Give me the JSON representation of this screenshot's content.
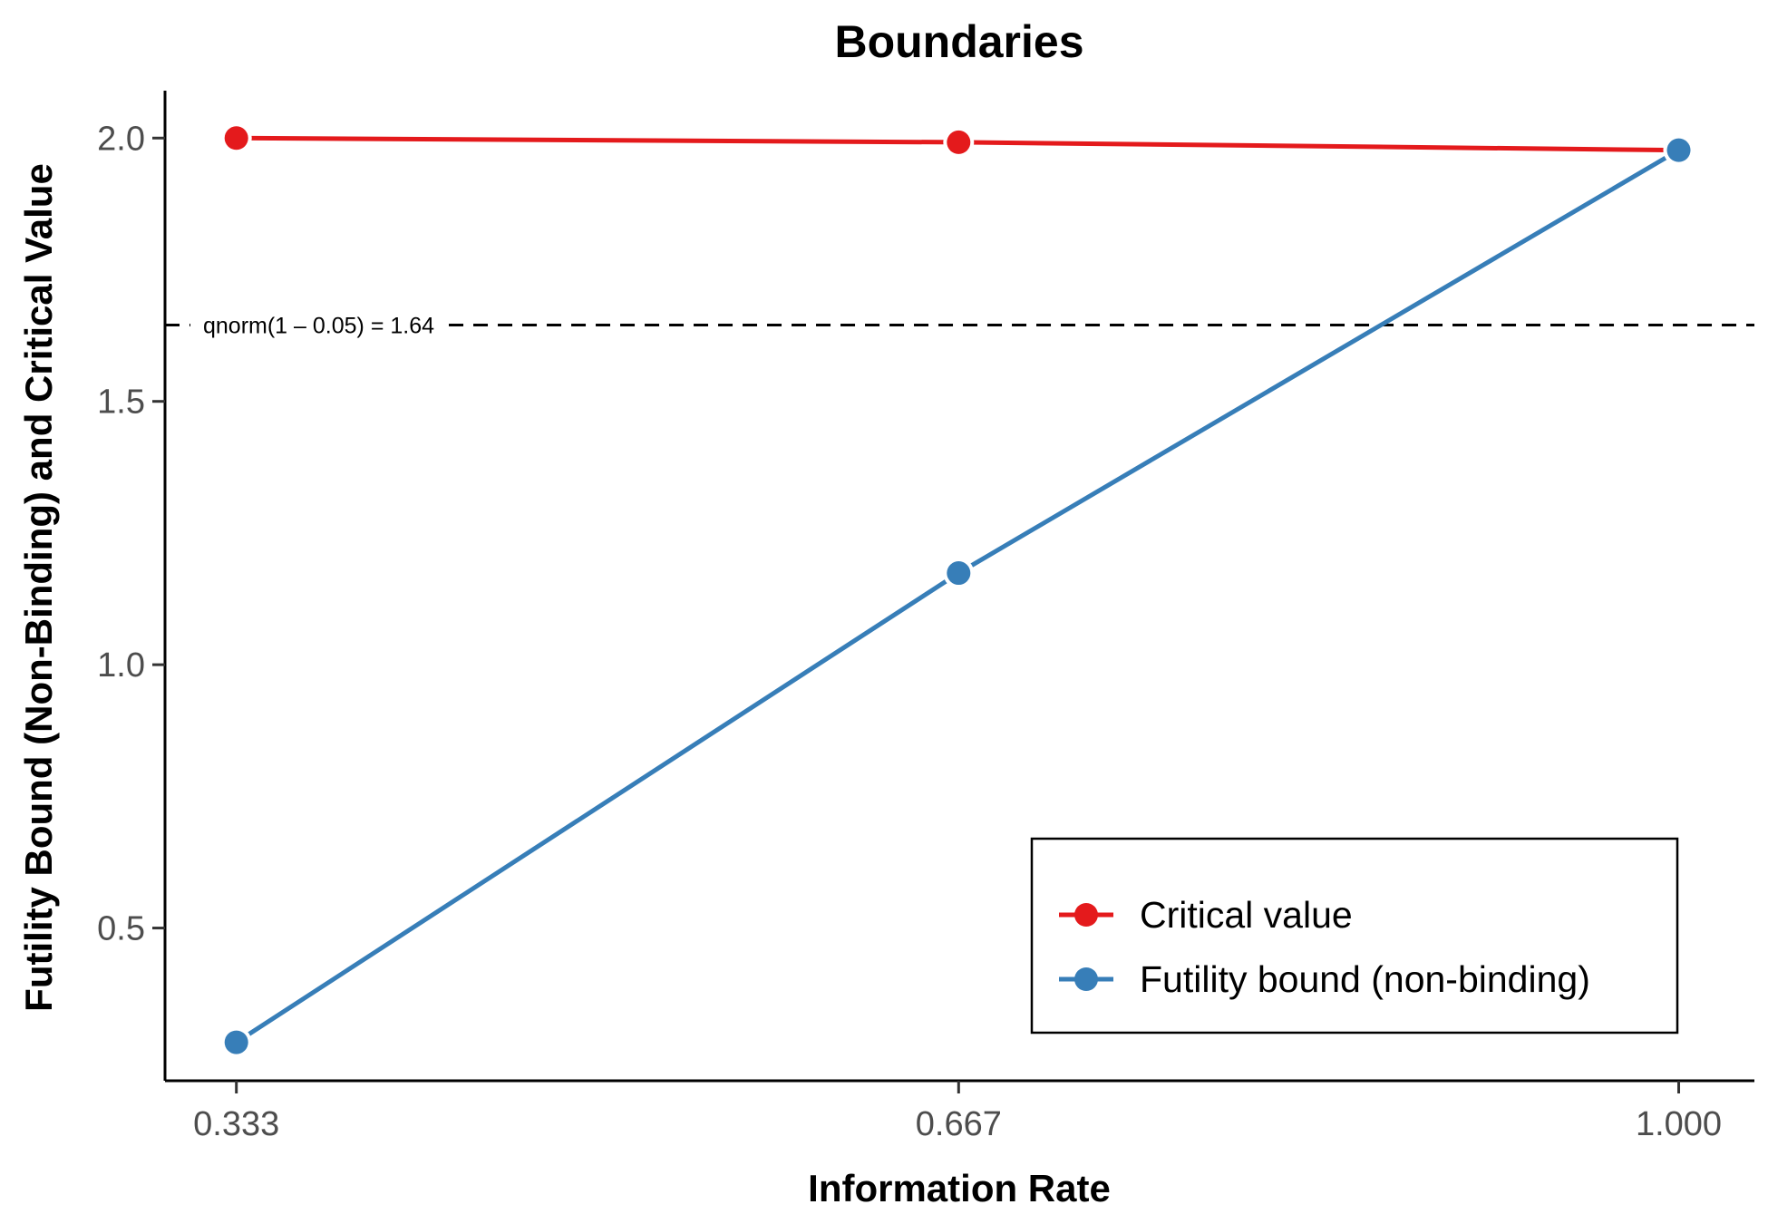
{
  "chart_data": {
    "type": "line",
    "title": "Boundaries",
    "xlabel": "Information Rate",
    "ylabel": "Futility Bound (Non-Binding) and Critical Value",
    "x": [
      0.333,
      0.667,
      1.0
    ],
    "x_tick_labels": [
      "0.333",
      "0.667",
      "1.000"
    ],
    "y_ticks": [
      0.5,
      1.0,
      1.5,
      2.0
    ],
    "y_tick_labels": [
      "0.5",
      "1.0",
      "1.5",
      "2.0"
    ],
    "xlim": [
      0.3,
      1.035
    ],
    "ylim": [
      0.21,
      2.09
    ],
    "series": [
      {
        "name": "Critical value",
        "color": "#e41a1c",
        "values": [
          2.0,
          1.992,
          1.977
        ]
      },
      {
        "name": "Futility bound (non-binding)",
        "color": "#377eb8",
        "values": [
          0.283,
          1.174,
          1.977
        ]
      }
    ],
    "reference_line": {
      "y": 1.6449,
      "style": "dashed",
      "label": "qnorm(1 – 0.05) = 1.64"
    },
    "legend_position": "bottom-right",
    "grid": false
  }
}
